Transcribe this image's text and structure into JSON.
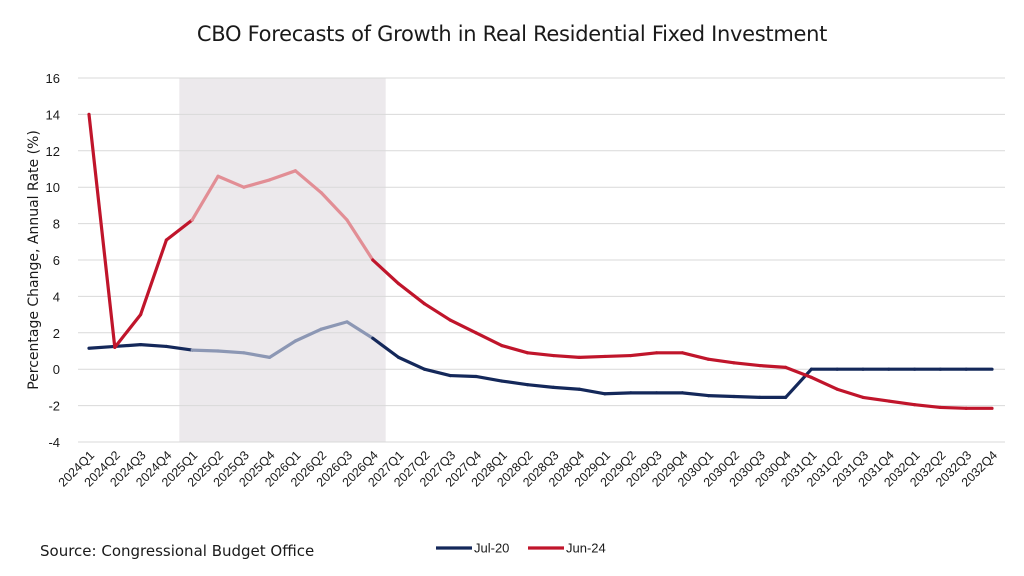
{
  "chart_data": {
    "type": "line",
    "title": "CBO Forecasts of Growth in Real Residential Fixed Investment",
    "ylabel": "Percentage Change, Annual Rate (%)",
    "xlabel": "",
    "source": "Source: Congressional Budget Office",
    "ylim": [
      -4,
      16
    ],
    "yticks": [
      -4,
      -2,
      0,
      2,
      4,
      6,
      8,
      10,
      12,
      14,
      16
    ],
    "grid": true,
    "legend_position": "bottom",
    "shaded_region": [
      "2025Q1",
      "2026Q4"
    ],
    "categories": [
      "2024Q1",
      "2024Q2",
      "2024Q3",
      "2024Q4",
      "2025Q1",
      "2025Q2",
      "2025Q3",
      "2025Q4",
      "2026Q1",
      "2026Q2",
      "2026Q3",
      "2026Q4",
      "2027Q1",
      "2027Q2",
      "2027Q3",
      "2027Q4",
      "2028Q1",
      "2028Q2",
      "2028Q3",
      "2028Q4",
      "2029Q1",
      "2029Q2",
      "2029Q3",
      "2029Q4",
      "2030Q1",
      "2030Q2",
      "2030Q3",
      "2030Q4",
      "2031Q1",
      "2031Q2",
      "2031Q3",
      "2031Q4",
      "2032Q1",
      "2032Q2",
      "2032Q3",
      "2032Q4"
    ],
    "series": [
      {
        "name": "Jul-20",
        "color": "#14285a",
        "faded_color": "#8c97b4",
        "values": [
          1.15,
          1.25,
          1.35,
          1.25,
          1.05,
          1.0,
          0.9,
          0.65,
          1.55,
          2.2,
          2.6,
          1.7,
          0.65,
          0.0,
          -0.35,
          -0.4,
          -0.65,
          -0.85,
          -1.0,
          -1.1,
          -1.35,
          -1.3,
          -1.3,
          -1.3,
          -1.45,
          -1.5,
          -1.55,
          -1.55,
          0.0,
          0.0,
          0.0,
          0.0,
          0.0,
          0.0,
          0.0,
          0.0
        ]
      },
      {
        "name": "Jun-24",
        "color": "#c0152b",
        "faded_color": "#e28e95",
        "values": [
          14.0,
          1.2,
          3.0,
          7.1,
          8.2,
          10.6,
          10.0,
          10.4,
          10.9,
          9.7,
          8.2,
          6.0,
          4.7,
          3.6,
          2.7,
          2.0,
          1.3,
          0.9,
          0.75,
          0.65,
          0.7,
          0.75,
          0.9,
          0.9,
          0.55,
          0.35,
          0.2,
          0.1,
          -0.45,
          -1.1,
          -1.55,
          -1.75,
          -1.95,
          -2.1,
          -2.15,
          -2.15
        ]
      }
    ]
  }
}
